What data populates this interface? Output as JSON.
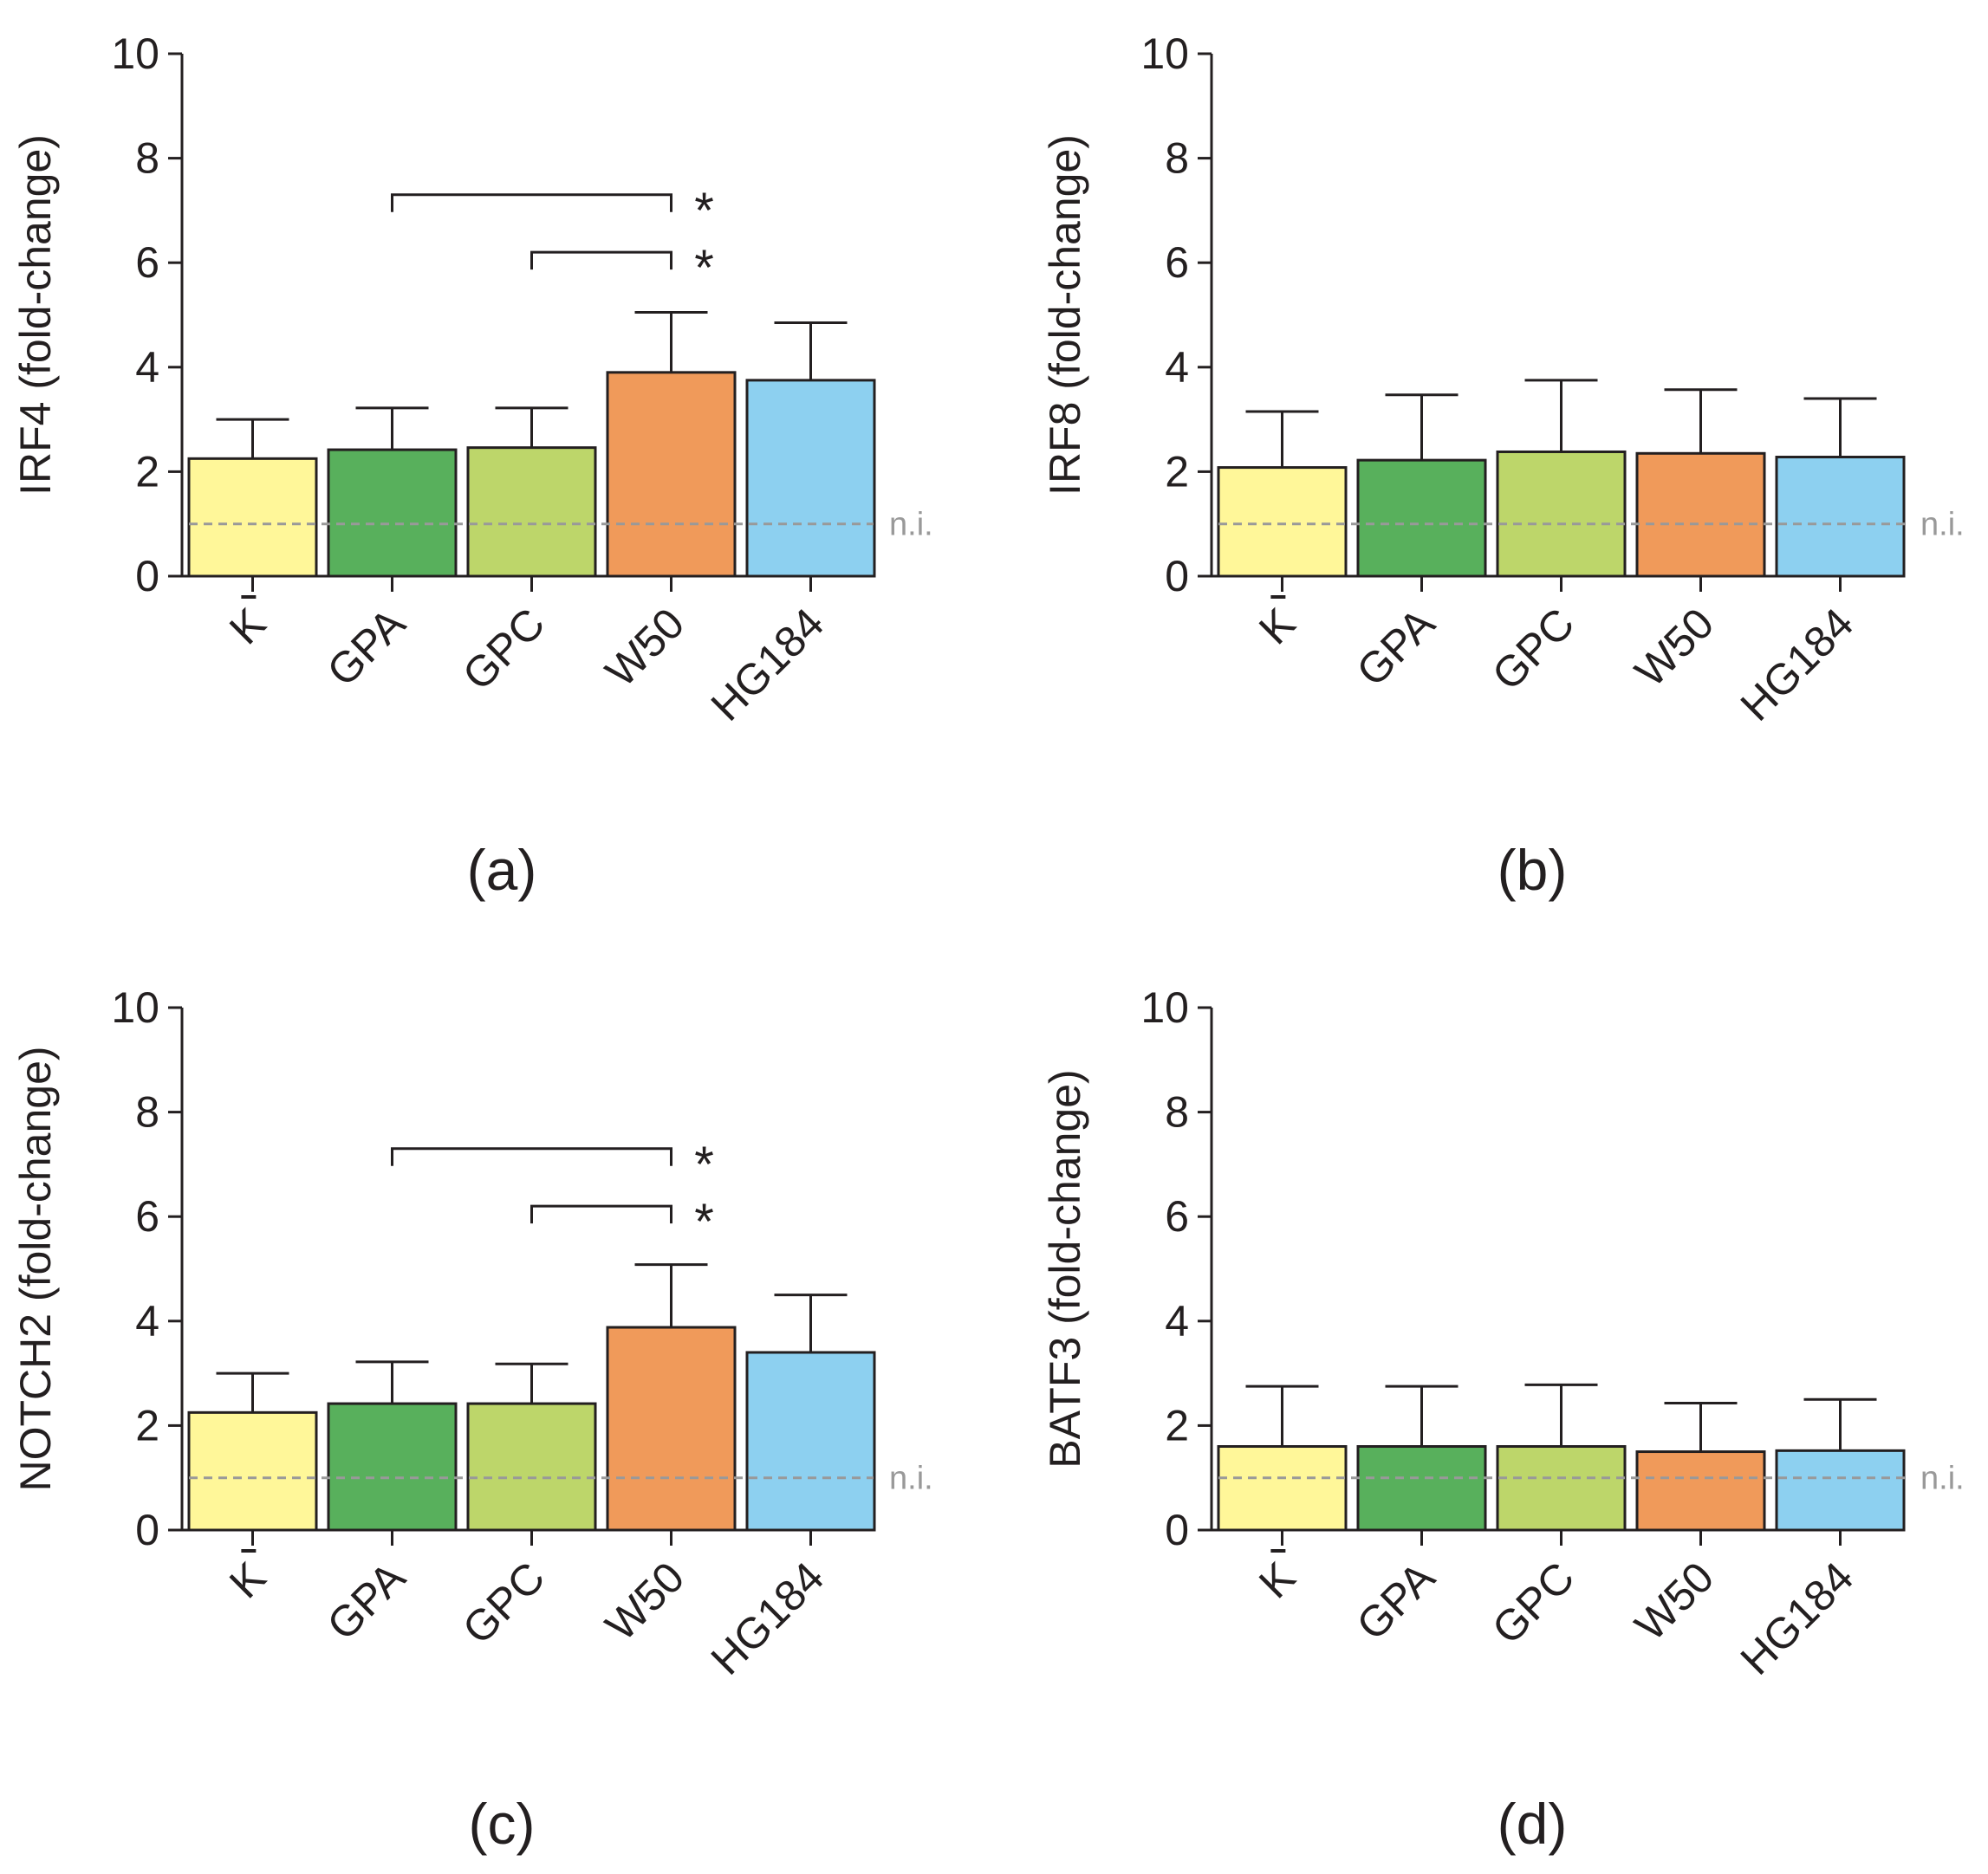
{
  "colors": {
    "axis": "#231f20",
    "reference_line": "#999999",
    "bars": [
      "#fff799",
      "#58b05c",
      "#bdd66a",
      "#f09a5a",
      "#8dd0f0"
    ]
  },
  "chart_data": [
    {
      "type": "bar",
      "panel_label": "(a)",
      "ylabel": "IRF4 (fold-change)",
      "ylim": [
        0,
        10
      ],
      "yticks": [
        "0",
        "2",
        "4",
        "6",
        "8",
        "10"
      ],
      "categories": [
        "K",
        "GPA",
        "GPC",
        "W50",
        "HG184"
      ],
      "values": [
        2.25,
        2.42,
        2.46,
        3.9,
        3.75
      ],
      "errors": [
        0.75,
        0.8,
        0.76,
        1.15,
        1.1
      ],
      "reference_line": {
        "value": 1,
        "label": "n.i."
      },
      "significance": [
        {
          "from": 1,
          "to": 3,
          "level": 7.3,
          "label": "*"
        },
        {
          "from": 2,
          "to": 3,
          "level": 6.2,
          "label": "*"
        }
      ]
    },
    {
      "type": "bar",
      "panel_label": "(b)",
      "ylabel": "IRF8 (fold-change)",
      "ylim": [
        0,
        10
      ],
      "yticks": [
        "0",
        "2",
        "4",
        "6",
        "8",
        "10"
      ],
      "categories": [
        "K",
        "GPA",
        "GPC",
        "W50",
        "HG184"
      ],
      "values": [
        2.08,
        2.22,
        2.38,
        2.35,
        2.28
      ],
      "errors": [
        1.07,
        1.25,
        1.37,
        1.22,
        1.12
      ],
      "reference_line": {
        "value": 1,
        "label": "n.i."
      },
      "significance": []
    },
    {
      "type": "bar",
      "panel_label": "(c)",
      "ylabel": "NOTCH2 (fold-change)",
      "ylim": [
        0,
        10
      ],
      "yticks": [
        "0",
        "2",
        "4",
        "6",
        "8",
        "10"
      ],
      "categories": [
        "K",
        "GPA",
        "GPC",
        "W50",
        "HG184"
      ],
      "values": [
        2.25,
        2.42,
        2.42,
        3.88,
        3.4
      ],
      "errors": [
        0.75,
        0.8,
        0.76,
        1.2,
        1.1
      ],
      "reference_line": {
        "value": 1,
        "label": "n.i."
      },
      "significance": [
        {
          "from": 1,
          "to": 3,
          "level": 7.3,
          "label": "*"
        },
        {
          "from": 2,
          "to": 3,
          "level": 6.2,
          "label": "*"
        }
      ]
    },
    {
      "type": "bar",
      "panel_label": "(d)",
      "ylabel": "BATF3 (fold-change)",
      "ylim": [
        0,
        10
      ],
      "yticks": [
        "0",
        "2",
        "4",
        "6",
        "8",
        "10"
      ],
      "categories": [
        "K",
        "GPA",
        "GPC",
        "W50",
        "HG184"
      ],
      "values": [
        1.6,
        1.6,
        1.6,
        1.5,
        1.52
      ],
      "errors": [
        1.15,
        1.15,
        1.18,
        0.93,
        0.98
      ],
      "reference_line": {
        "value": 1,
        "label": "n.i."
      },
      "significance": []
    }
  ]
}
